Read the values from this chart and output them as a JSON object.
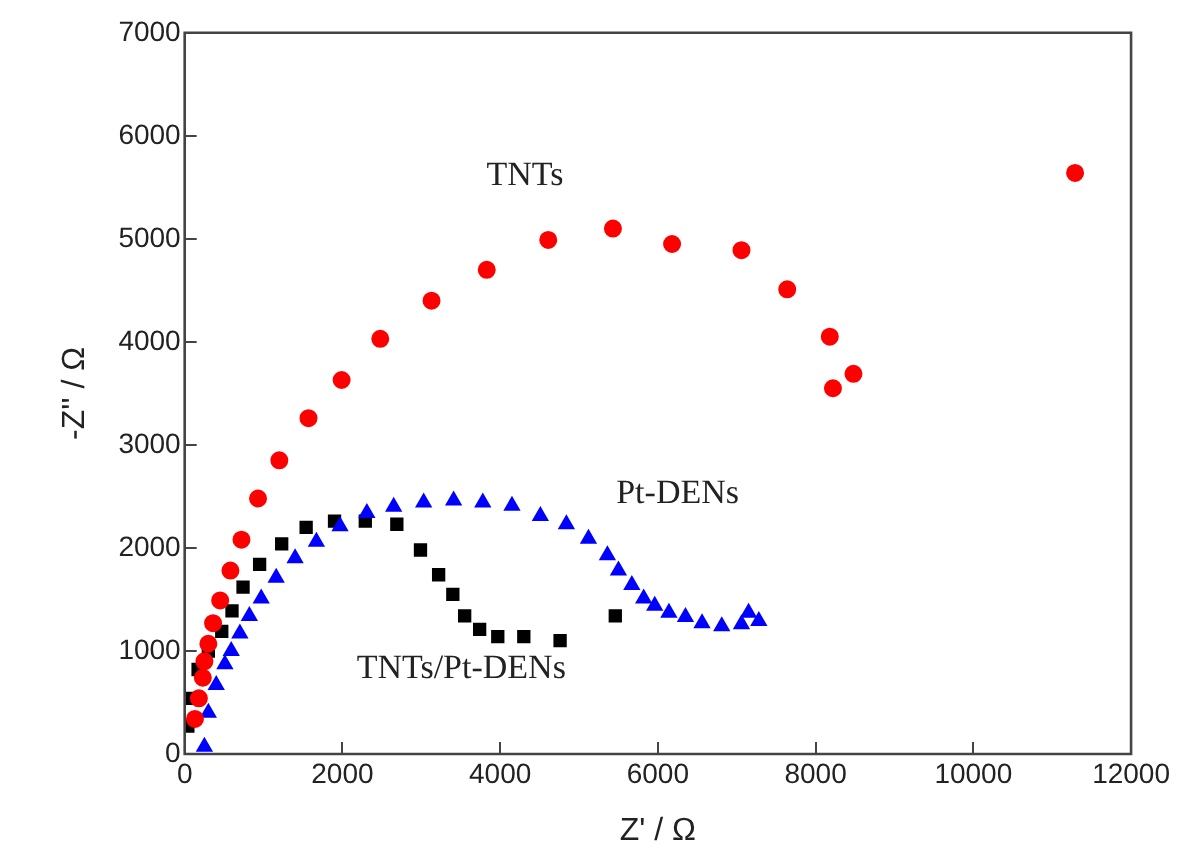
{
  "chart_data": {
    "type": "scatter",
    "xlabel": "Z' / Ω",
    "ylabel": "-Z'' / Ω",
    "xlim": [
      0,
      12000
    ],
    "xticks": [
      0,
      2000,
      4000,
      6000,
      8000,
      10000,
      12000
    ],
    "ylim": [
      0,
      7000
    ],
    "yticks": [
      0,
      1000,
      2000,
      3000,
      4000,
      5000,
      6000,
      7000
    ],
    "grid": false,
    "legend": false,
    "series": [
      {
        "name": "TNTs",
        "color": "#ff0000",
        "marker": "circle",
        "x": [
          130,
          180,
          230,
          250,
          300,
          360,
          450,
          580,
          720,
          930,
          1200,
          1570,
          1990,
          2480,
          3130,
          3830,
          4610,
          5430,
          6180,
          7060,
          7640,
          8180,
          8220,
          8480,
          11290
        ],
        "values": [
          340,
          540,
          740,
          900,
          1070,
          1270,
          1490,
          1780,
          2080,
          2480,
          2850,
          3260,
          3630,
          4030,
          4400,
          4700,
          4990,
          5100,
          4950,
          4890,
          4510,
          4050,
          3550,
          3690,
          5640
        ]
      },
      {
        "name": "Pt-DENs",
        "color": "#0000ff",
        "marker": "triangle",
        "x": [
          250,
          300,
          400,
          510,
          590,
          700,
          820,
          970,
          1160,
          1400,
          1670,
          1970,
          2310,
          2650,
          3030,
          3410,
          3780,
          4150,
          4510,
          4840,
          5120,
          5360,
          5500,
          5670,
          5820,
          5960,
          6140,
          6350,
          6560,
          6810,
          7060,
          7150,
          7280
        ],
        "values": [
          70,
          400,
          670,
          870,
          1000,
          1170,
          1340,
          1510,
          1710,
          1900,
          2060,
          2210,
          2340,
          2400,
          2440,
          2460,
          2440,
          2410,
          2310,
          2230,
          2090,
          1930,
          1780,
          1640,
          1510,
          1440,
          1370,
          1330,
          1270,
          1240,
          1260,
          1370,
          1290
        ]
      },
      {
        "name": "TNTs/Pt-DENs",
        "color": "#000000",
        "marker": "square",
        "x": [
          40,
          80,
          170,
          300,
          470,
          600,
          740,
          950,
          1230,
          1540,
          1900,
          2290,
          2690,
          2990,
          3220,
          3400,
          3550,
          3740,
          3970,
          4300,
          4760,
          5460
        ],
        "values": [
          270,
          540,
          820,
          1000,
          1190,
          1390,
          1620,
          1840,
          2040,
          2200,
          2260,
          2260,
          2230,
          1980,
          1740,
          1550,
          1340,
          1210,
          1140,
          1140,
          1100,
          1340
        ]
      }
    ]
  }
}
